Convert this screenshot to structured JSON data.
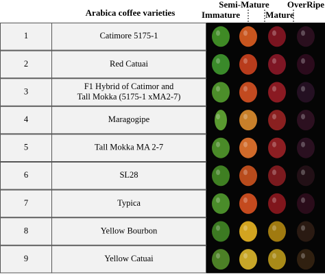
{
  "header": {
    "title": "Arabica coffee varieties",
    "stages": [
      "Semi-Mature",
      "OverRipe",
      "Immature",
      "Mature"
    ]
  },
  "table": {
    "rows": [
      {
        "number": "1",
        "name": [
          "Catimore 5175-1"
        ]
      },
      {
        "number": "2",
        "name": [
          "Red Catuai"
        ]
      },
      {
        "number": "3",
        "name": [
          "F1 Hybrid of Catimor and",
          "Tall Mokka (5175-1 xMA2-7)"
        ]
      },
      {
        "number": "4",
        "name": [
          "Maragogipe"
        ]
      },
      {
        "number": "5",
        "name": [
          "Tall Mokka MA 2-7"
        ]
      },
      {
        "number": "6",
        "name": [
          "SL28"
        ]
      },
      {
        "number": "7",
        "name": [
          "Typica"
        ]
      },
      {
        "number": "8",
        "name": [
          "Yellow Bourbon"
        ]
      },
      {
        "number": "9",
        "name": [
          "Yellow Catuai"
        ]
      }
    ]
  }
}
